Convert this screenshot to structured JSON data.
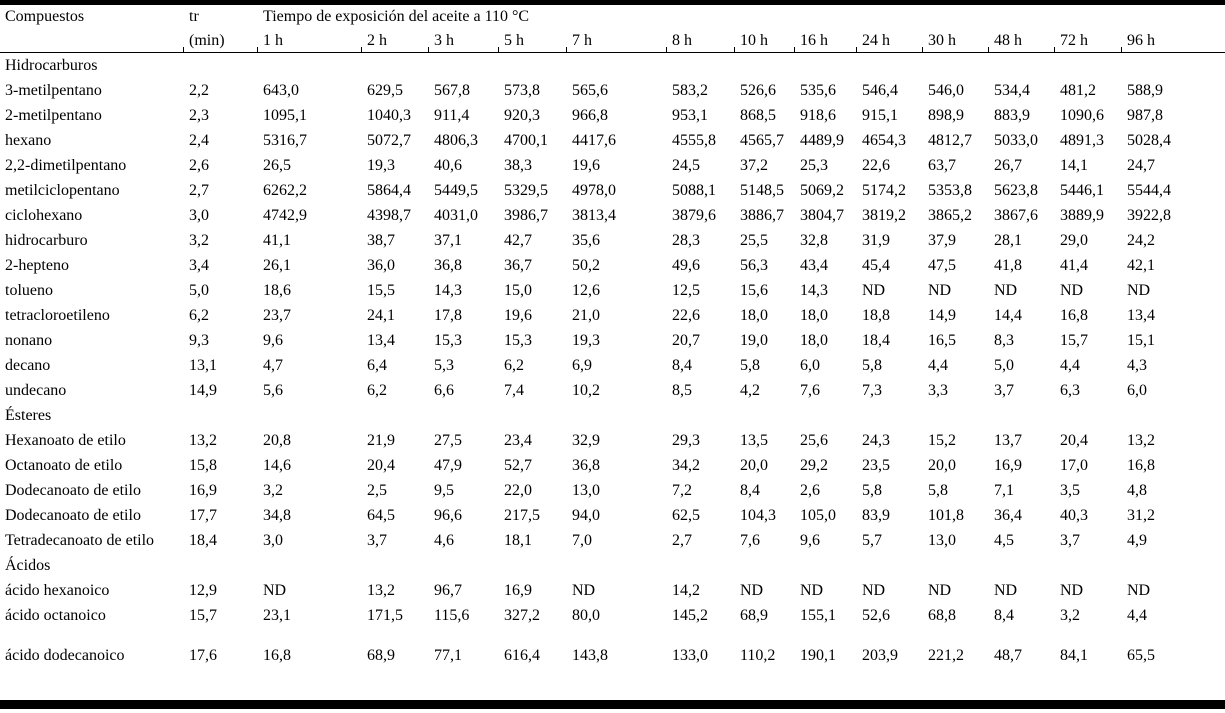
{
  "page": {
    "col1_header": "Compuestos",
    "tr_header_line1": "tr",
    "tr_header_line2": "(min)",
    "exposure_header": "Tiempo de exposición del aceite a 110 °C",
    "time_columns": [
      "1 h",
      "2 h",
      "3 h",
      "5 h",
      "7 h",
      "8 h",
      "10 h",
      "16 h",
      "24 h",
      "30 h",
      "48 h",
      "72 h",
      "96 h"
    ],
    "sections": [
      {
        "title": "Hidrocarburos",
        "rows": [
          {
            "compound": "3-metilpentano",
            "tr": "2,2",
            "values": [
              "643,0",
              "629,5",
              "567,8",
              "573,8",
              "565,6",
              "583,2",
              "526,6",
              "535,6",
              "546,4",
              "546,0",
              "534,4",
              "481,2",
              "588,9"
            ]
          },
          {
            "compound": "2-metilpentano",
            "tr": "2,3",
            "values": [
              "1095,1",
              "1040,3",
              "911,4",
              "920,3",
              "966,8",
              "953,1",
              "868,5",
              "918,6",
              "915,1",
              "898,9",
              "883,9",
              "1090,6",
              "987,8"
            ]
          },
          {
            "compound": "hexano",
            "tr": "2,4",
            "values": [
              "5316,7",
              "5072,7",
              "4806,3",
              "4700,1",
              "4417,6",
              "4555,8",
              "4565,7",
              "4489,9",
              "4654,3",
              "4812,7",
              "5033,0",
              "4891,3",
              "5028,4"
            ]
          },
          {
            "compound": "2,2-dimetilpentano",
            "tr": "2,6",
            "values": [
              "26,5",
              "19,3",
              "40,6",
              "38,3",
              "19,6",
              "24,5",
              "37,2",
              "25,3",
              "22,6",
              "63,7",
              "26,7",
              "14,1",
              "24,7"
            ]
          },
          {
            "compound": "metilciclopentano",
            "tr": "2,7",
            "values": [
              "6262,2",
              "5864,4",
              "5449,5",
              "5329,5",
              "4978,0",
              "5088,1",
              "5148,5",
              "5069,2",
              "5174,2",
              "5353,8",
              "5623,8",
              "5446,1",
              "5544,4"
            ]
          },
          {
            "compound": "ciclohexano",
            "tr": "3,0",
            "values": [
              "4742,9",
              "4398,7",
              "4031,0",
              "3986,7",
              "3813,4",
              "3879,6",
              "3886,7",
              "3804,7",
              "3819,2",
              "3865,2",
              "3867,6",
              "3889,9",
              "3922,8"
            ]
          },
          {
            "compound": "hidrocarburo",
            "tr": "3,2",
            "values": [
              "41,1",
              "38,7",
              "37,1",
              "42,7",
              "35,6",
              "28,3",
              "25,5",
              "32,8",
              "31,9",
              "37,9",
              "28,1",
              "29,0",
              "24,2"
            ]
          },
          {
            "compound": "2-hepteno",
            "tr": "3,4",
            "values": [
              "26,1",
              "36,0",
              "36,8",
              "36,7",
              "50,2",
              "49,6",
              "56,3",
              "43,4",
              "45,4",
              "47,5",
              "41,8",
              "41,4",
              "42,1"
            ]
          },
          {
            "compound": "tolueno",
            "tr": "5,0",
            "values": [
              "18,6",
              "15,5",
              "14,3",
              "15,0",
              "12,6",
              "12,5",
              "15,6",
              "14,3",
              "ND",
              "ND",
              "ND",
              "ND",
              "ND"
            ]
          },
          {
            "compound": "tetracloroetileno",
            "tr": "6,2",
            "values": [
              "23,7",
              "24,1",
              "17,8",
              "19,6",
              "21,0",
              "22,6",
              "18,0",
              "18,0",
              "18,8",
              "14,9",
              "14,4",
              "16,8",
              "13,4"
            ]
          },
          {
            "compound": "nonano",
            "tr": "9,3",
            "values": [
              "9,6",
              "13,4",
              "15,3",
              "15,3",
              "19,3",
              "20,7",
              "19,0",
              "18,0",
              "18,4",
              "16,5",
              "8,3",
              "15,7",
              "15,1"
            ]
          },
          {
            "compound": "decano",
            "tr": "13,1",
            "values": [
              "4,7",
              "6,4",
              "5,3",
              "6,2",
              "6,9",
              "8,4",
              "5,8",
              "6,0",
              "5,8",
              "4,4",
              "5,0",
              "4,4",
              "4,3"
            ]
          },
          {
            "compound": "undecano",
            "tr": "14,9",
            "values": [
              "5,6",
              "6,2",
              "6,6",
              "7,4",
              "10,2",
              "8,5",
              "4,2",
              "7,6",
              "7,3",
              "3,3",
              "3,7",
              "6,3",
              "6,0"
            ]
          }
        ]
      },
      {
        "title": "Ésteres",
        "rows": [
          {
            "compound": "Hexanoato de etilo",
            "tr": "13,2",
            "values": [
              "20,8",
              "21,9",
              "27,5",
              "23,4",
              "32,9",
              "29,3",
              "13,5",
              "25,6",
              "24,3",
              "15,2",
              "13,7",
              "20,4",
              "13,2"
            ]
          },
          {
            "compound": "Octanoato de etilo",
            "tr": "15,8",
            "values": [
              "14,6",
              "20,4",
              "47,9",
              "52,7",
              "36,8",
              "34,2",
              "20,0",
              "29,2",
              "23,5",
              "20,0",
              "16,9",
              "17,0",
              "16,8"
            ]
          },
          {
            "compound": "Dodecanoato de etilo",
            "tr": "16,9",
            "values": [
              "3,2",
              "2,5",
              "9,5",
              "22,0",
              "13,0",
              "7,2",
              "8,4",
              "2,6",
              "5,8",
              "5,8",
              "7,1",
              "3,5",
              "4,8"
            ]
          },
          {
            "compound": "Dodecanoato de etilo",
            "tr": "17,7",
            "values": [
              "34,8",
              "64,5",
              "96,6",
              "217,5",
              "94,0",
              "62,5",
              "104,3",
              "105,0",
              "83,9",
              "101,8",
              "36,4",
              "40,3",
              "31,2"
            ]
          },
          {
            "compound": "Tetradecanoato de etilo",
            "tr": "18,4",
            "values": [
              "3,0",
              "3,7",
              "4,6",
              "18,1",
              "7,0",
              "2,7",
              "7,6",
              "9,6",
              "5,7",
              "13,0",
              "4,5",
              "3,7",
              "4,9"
            ]
          }
        ]
      },
      {
        "title": "Ácidos",
        "rows": [
          {
            "compound": "ácido hexanoico",
            "tr": "12,9",
            "values": [
              "ND",
              "13,2",
              "96,7",
              "16,9",
              "ND",
              "14,2",
              "ND",
              "ND",
              "ND",
              "ND",
              "ND",
              "ND",
              "ND"
            ]
          },
          {
            "compound": "ácido octanoico",
            "tr": "15,7",
            "values": [
              "23,1",
              "171,5",
              "115,6",
              "327,2",
              "80,0",
              "145,2",
              "68,9",
              "155,1",
              "52,6",
              "68,8",
              "8,4",
              "3,2",
              "4,4"
            ]
          },
          {
            "compound": "ácido dodecanoico",
            "tr": "17,6",
            "spacer_before": true,
            "values": [
              "16,8",
              "68,9",
              "77,1",
              "616,4",
              "143,8",
              "133,0",
              "110,2",
              "190,1",
              "203,9",
              "221,2",
              "48,7",
              "84,1",
              "65,5"
            ]
          }
        ]
      }
    ]
  }
}
